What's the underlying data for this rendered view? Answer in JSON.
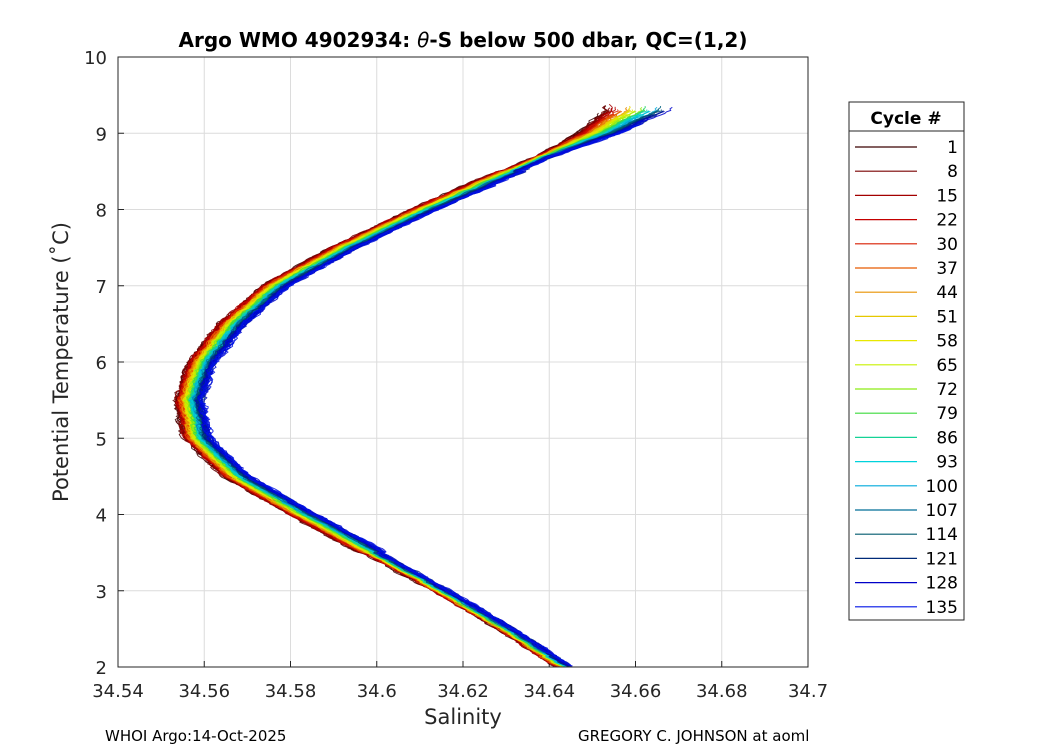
{
  "chart_data": {
    "type": "line",
    "title": "Argo WMO 4902934: θ-S below 500 dbar,  QC=(1,2)",
    "title_prefix": "Argo WMO 4902934: ",
    "title_theta": "θ",
    "title_suffix": "-S below 500 dbar,  QC=(1,2)",
    "xlabel": "Salinity",
    "ylabel": "Potential Temperature (˚C)",
    "xlim": [
      34.54,
      34.7
    ],
    "ylim": [
      2,
      10
    ],
    "x_ticks": [
      "34.54",
      "34.56",
      "34.58",
      "34.6",
      "34.62",
      "34.64",
      "34.66",
      "34.68",
      "34.7"
    ],
    "y_ticks": [
      "2",
      "3",
      "4",
      "5",
      "6",
      "7",
      "8",
      "9",
      "10"
    ],
    "grid": true,
    "legend": {
      "title": "Cycle #",
      "position": "outside-right",
      "entries": [
        "1",
        "8",
        "15",
        "22",
        "30",
        "37",
        "44",
        "51",
        "58",
        "65",
        "72",
        "79",
        "86",
        "93",
        "100",
        "107",
        "114",
        "121",
        "128",
        "135"
      ],
      "colors": [
        "#3a0000",
        "#7a0000",
        "#a30000",
        "#c40000",
        "#d81e00",
        "#e65a00",
        "#e89200",
        "#e6c800",
        "#e8e800",
        "#c8f000",
        "#8cec14",
        "#3cda3c",
        "#14d296",
        "#00d2dc",
        "#00aadc",
        "#006e96",
        "#005a6e",
        "#002a78",
        "#0000c8",
        "#0014e6"
      ]
    },
    "series_profile": {
      "theta": [
        2.0,
        2.5,
        3.0,
        3.5,
        4.0,
        4.5,
        5.0,
        5.5,
        6.0,
        6.5,
        7.0,
        7.5,
        8.0,
        8.5,
        9.0,
        9.3
      ],
      "salinity": [
        34.6435,
        34.63,
        34.615,
        34.599,
        34.583,
        34.5675,
        34.5585,
        34.5565,
        34.5595,
        34.5665,
        34.5765,
        34.5925,
        34.611,
        34.631,
        34.6515,
        34.6605
      ]
    }
  },
  "footer": {
    "left": "WHOI Argo:14-Oct-2025",
    "right": "GREGORY C. JOHNSON at aoml"
  }
}
